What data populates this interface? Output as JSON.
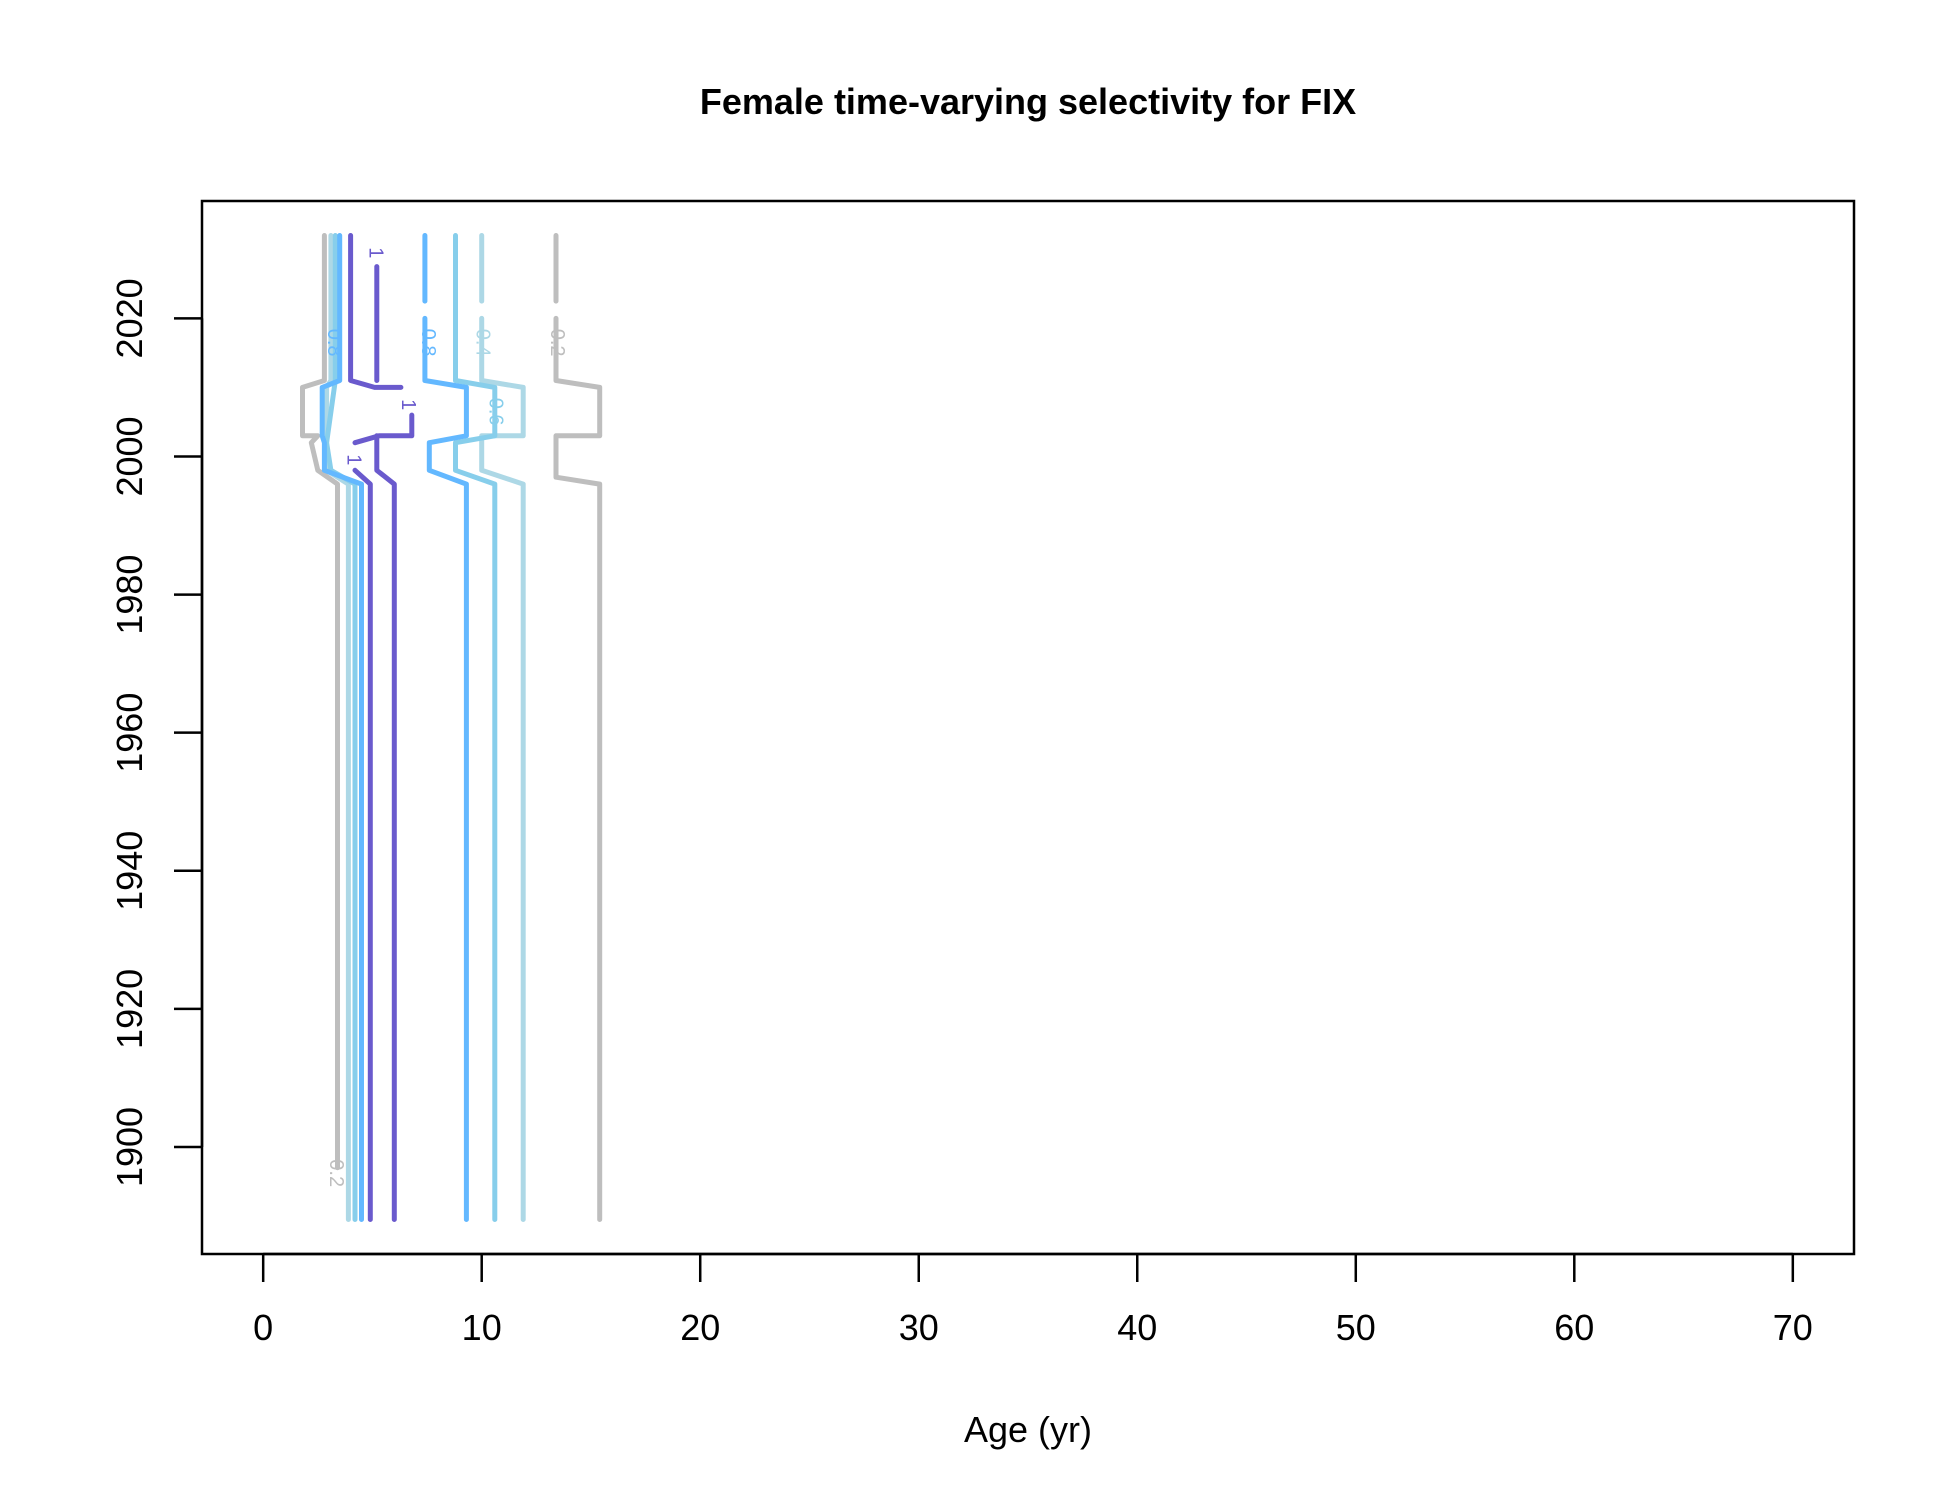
{
  "chart_data": {
    "type": "line",
    "title": "Female time-varying selectivity for FIX",
    "xlabel": "Age (yr)",
    "ylabel": "",
    "xlim": [
      -2.8,
      72.8
    ],
    "ylim": [
      1884.5,
      2037
    ],
    "xticks": [
      0,
      10,
      20,
      30,
      40,
      50,
      60,
      70
    ],
    "yticks": [
      1900,
      1920,
      1940,
      1960,
      1980,
      2000,
      2020
    ],
    "grid": false,
    "legend": "none",
    "series": [
      {
        "level": "0.2",
        "color": "#bebebe",
        "label_at": [
          3.3,
          1896.2
        ],
        "points": [
          [
            3.4,
            1897
          ],
          [
            3.4,
            1996
          ],
          [
            2.5,
            1998
          ],
          [
            2.2,
            2002
          ],
          [
            2.5,
            2003
          ],
          [
            1.8,
            2003
          ],
          [
            1.8,
            2010
          ],
          [
            2.8,
            2011
          ],
          [
            2.8,
            2032
          ]
        ]
      },
      {
        "level": "0.2",
        "color": "#bebebe",
        "label_at": [
          13.4,
          2016.5
        ],
        "points": [
          [
            15.4,
            1889.5
          ],
          [
            15.4,
            1996
          ],
          [
            13.4,
            1997
          ],
          [
            13.4,
            2003
          ],
          [
            15.4,
            2003
          ],
          [
            15.4,
            2010
          ],
          [
            13.4,
            2011
          ],
          [
            13.4,
            2020
          ]
        ]
      },
      {
        "level": "0.2",
        "color": "#bebebe",
        "points": [
          [
            13.4,
            2022.5
          ],
          [
            13.4,
            2032
          ]
        ]
      },
      {
        "level": "0.4",
        "color": "#add8e6",
        "points": [
          [
            3.9,
            1889.5
          ],
          [
            3.9,
            1996
          ],
          [
            2.9,
            1998
          ],
          [
            2.9,
            2010
          ],
          [
            3.1,
            2011
          ],
          [
            3.1,
            2032
          ]
        ]
      },
      {
        "level": "0.4",
        "color": "#add8e6",
        "label_at": [
          10.0,
          2016.5
        ],
        "points": [
          [
            11.9,
            1889.5
          ],
          [
            11.9,
            1996
          ],
          [
            10.0,
            1998
          ],
          [
            10.0,
            2003
          ],
          [
            11.9,
            2003
          ],
          [
            11.9,
            2010
          ],
          [
            10.0,
            2011
          ],
          [
            10.0,
            2020
          ]
        ]
      },
      {
        "level": "0.4",
        "color": "#add8e6",
        "points": [
          [
            10.0,
            2022.5
          ],
          [
            10.0,
            2032
          ]
        ]
      },
      {
        "level": "0.6",
        "color": "#87ceeb",
        "points": [
          [
            4.2,
            1889.5
          ],
          [
            4.2,
            1996
          ],
          [
            3.1,
            1998
          ],
          [
            2.9,
            2002
          ],
          [
            3.3,
            2011
          ],
          [
            3.3,
            2032
          ]
        ]
      },
      {
        "level": "0.6",
        "color": "#87ceeb",
        "label_at": [
          10.6,
          2006.5
        ],
        "points": [
          [
            10.6,
            1889.5
          ],
          [
            10.6,
            1996
          ],
          [
            8.8,
            1998
          ],
          [
            8.8,
            2002
          ],
          [
            10.6,
            2003
          ],
          [
            10.6,
            2010
          ],
          [
            8.8,
            2011
          ],
          [
            8.8,
            2032
          ]
        ]
      },
      {
        "level": "0.8",
        "color": "#63b8ff",
        "label_at": [
          3.2,
          2016.5
        ],
        "points": [
          [
            4.5,
            1889.5
          ],
          [
            4.5,
            1996
          ],
          [
            2.8,
            1998
          ],
          [
            2.8,
            2002
          ],
          [
            2.7,
            2003
          ],
          [
            2.7,
            2010
          ],
          [
            3.5,
            2011
          ],
          [
            3.5,
            2032
          ]
        ]
      },
      {
        "level": "0.8",
        "color": "#63b8ff",
        "label_at": [
          7.5,
          2016.5
        ],
        "points": [
          [
            9.3,
            1889.5
          ],
          [
            9.3,
            1996
          ],
          [
            7.6,
            1998
          ],
          [
            7.6,
            2002
          ],
          [
            9.3,
            2003
          ],
          [
            9.3,
            2010
          ],
          [
            7.4,
            2011
          ],
          [
            7.4,
            2020
          ]
        ]
      },
      {
        "level": "0.8",
        "color": "#63b8ff",
        "points": [
          [
            7.4,
            2022.5
          ],
          [
            7.4,
            2032
          ]
        ]
      },
      {
        "level": "1",
        "color": "#6a5acd",
        "points": [
          [
            4.0,
            2032
          ],
          [
            4.0,
            2011
          ],
          [
            5.1,
            2010
          ],
          [
            6.3,
            2010
          ]
        ]
      },
      {
        "level": "1",
        "color": "#6a5acd",
        "label_at": [
          6.6,
          2007.5
        ],
        "points": [
          [
            6.8,
            2006
          ],
          [
            6.8,
            2003
          ],
          [
            5.3,
            2003
          ],
          [
            4.2,
            2002
          ]
        ]
      },
      {
        "level": "1",
        "color": "#6a5acd",
        "label_at": [
          4.1,
          1999.5
        ],
        "points": [
          [
            4.2,
            1998
          ],
          [
            4.9,
            1996
          ],
          [
            4.9,
            1889.5
          ]
        ]
      },
      {
        "level": "1",
        "color": "#6a5acd",
        "points": [
          [
            6.0,
            1889.5
          ],
          [
            6.0,
            1996
          ],
          [
            5.2,
            1998
          ],
          [
            5.2,
            2003
          ]
        ]
      },
      {
        "level": "1",
        "color": "#6a5acd",
        "label_at": [
          5.1,
          2029.5
        ],
        "points": [
          [
            5.2,
            2027.5
          ],
          [
            5.2,
            2011
          ]
        ]
      }
    ]
  }
}
